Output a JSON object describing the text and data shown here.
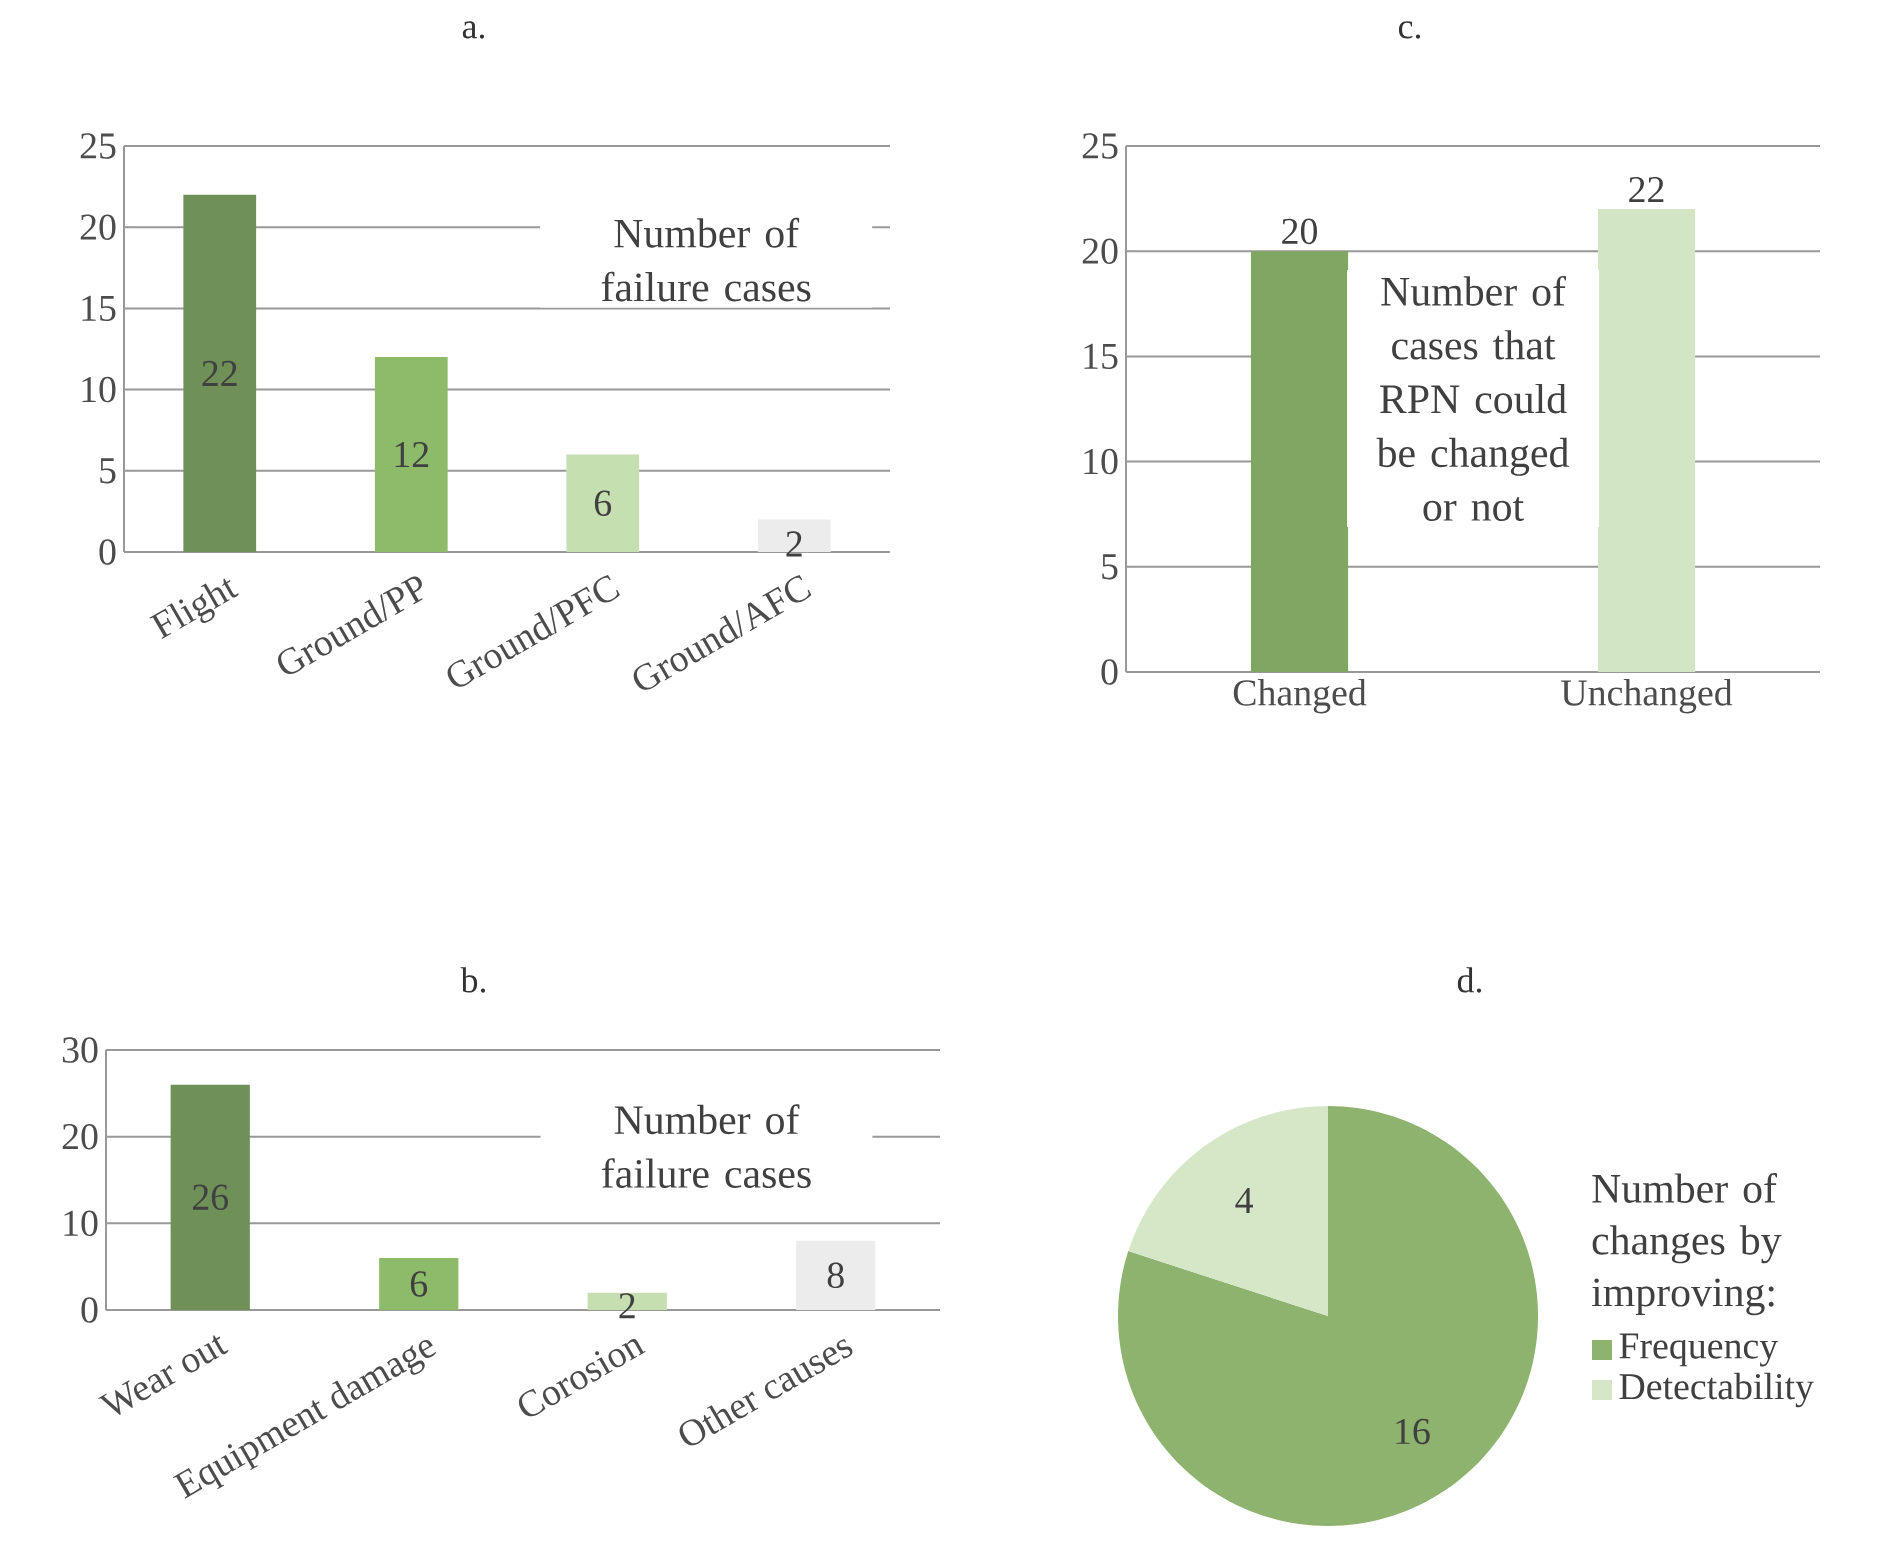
{
  "chart_data": [
    {
      "type": "bar",
      "title": "a.",
      "categories": [
        "Flight",
        "Ground/PP",
        "Ground/PFC",
        "Ground/AFC"
      ],
      "values": [
        22,
        12,
        6,
        2
      ],
      "colors": [
        "#6f9158",
        "#8dbb6a",
        "#c6dfb1",
        "#ececec"
      ],
      "ylim": [
        0,
        25
      ],
      "yticks": [
        0,
        5,
        10,
        15,
        20,
        25
      ],
      "grid": "y",
      "data_labels": true,
      "annotations": [
        "Number of failure cases"
      ]
    },
    {
      "type": "bar",
      "title": "c.",
      "categories": [
        "Changed",
        "Unchanged"
      ],
      "values": [
        20,
        22
      ],
      "colors": [
        "#7fa662",
        "#d3e6c4"
      ],
      "ylim": [
        0,
        25
      ],
      "yticks": [
        0,
        5,
        10,
        15,
        20,
        25
      ],
      "grid": "y",
      "data_labels": true,
      "annotations": [
        "Number of cases that RPN could be changed or not"
      ]
    },
    {
      "type": "bar",
      "title": "b.",
      "categories": [
        "Wear out",
        "Equipment damage",
        "Corosion",
        "Other causes"
      ],
      "values": [
        26,
        6,
        2,
        8
      ],
      "colors": [
        "#6f9158",
        "#8dbb6a",
        "#c6dfb1",
        "#ececec"
      ],
      "ylim": [
        0,
        30
      ],
      "yticks": [
        0,
        10,
        20,
        30
      ],
      "grid": "y",
      "data_labels": true,
      "annotations": [
        "Number of failure cases"
      ]
    },
    {
      "type": "pie",
      "title": "d.",
      "categories": [
        "Frequency",
        "Detectability"
      ],
      "values": [
        16,
        4
      ],
      "colors": [
        "#8db36e",
        "#d6e7c8"
      ],
      "data_labels": true,
      "legend": "right",
      "legend_title": "Number of changes by improving:"
    }
  ]
}
